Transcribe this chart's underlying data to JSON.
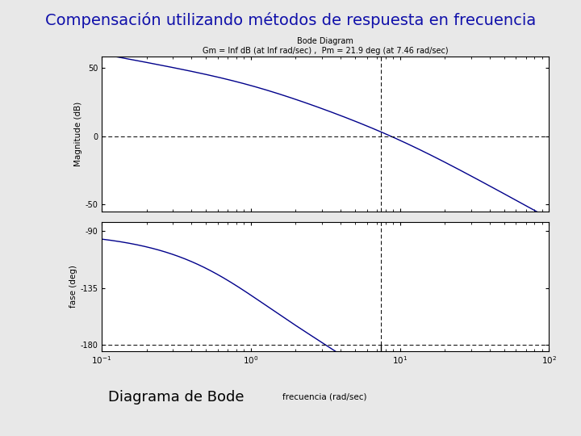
{
  "title_slide": "Compensación utilizando métodos de respuesta en frecuencia",
  "bode_title": "Bode Diagram",
  "bode_subtitle": "Gm = Inf dB (at Inf rad/sec) ,  Pm = 21.9 deg (at 7.46 rad/sec)",
  "xlabel_small": "frecuencia (rad/sec)",
  "ylabel_mag": "Magnitude (dB)",
  "ylabel_phase": "fase (deg)",
  "bottom_label_big": "Diagrama de Bode",
  "bottom_label_small": "frecuencia (rad/sec)",
  "freq_min": -1,
  "freq_max": 2,
  "mag_ylim": [
    -55,
    58
  ],
  "mag_yticks": [
    50,
    0,
    -50
  ],
  "phase_ylim": [
    -185,
    -83
  ],
  "phase_yticks": [
    -90,
    -135,
    -180
  ],
  "gain_crossover": 7.46,
  "line_color": "#00008B",
  "dashed_line_color": "black",
  "bg_color": "#BEBEBE",
  "plot_bg_color": "#FFFFFF",
  "title_bg_color": "#B8D4E8",
  "title_text_color": "#1010AA",
  "slide_bg_color": "#E8E8E8",
  "title_border_color": "#7090B0"
}
